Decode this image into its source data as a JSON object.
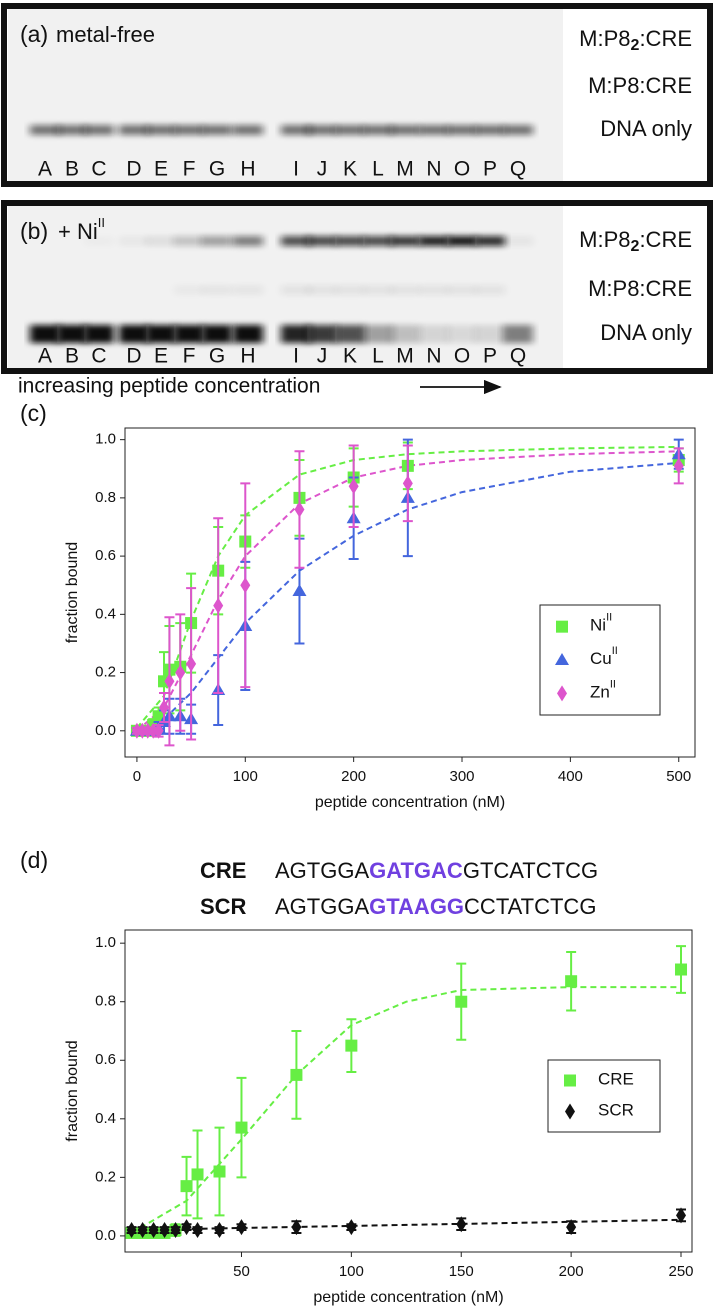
{
  "gels": [
    {
      "panel": "(a)",
      "condition": "metal-free",
      "condition_sup": null,
      "bands": [
        [
          "M:P8",
          "2",
          ":CRE"
        ],
        [
          "M:P8:CRE"
        ],
        [
          "DNA only"
        ]
      ],
      "lanes": [
        "A",
        "B",
        "C",
        "D",
        "E",
        "F",
        "G",
        "H",
        "I",
        "J",
        "K",
        "L",
        "M",
        "N",
        "O",
        "P",
        "Q"
      ]
    },
    {
      "panel": "(b)",
      "condition": "+ Ni",
      "condition_sup": "II",
      "bands": [
        [
          "M:P8",
          "2",
          ":CRE"
        ],
        [
          "M:P8:CRE"
        ],
        [
          "DNA only"
        ]
      ],
      "lanes": [
        "A",
        "B",
        "C",
        "D",
        "E",
        "F",
        "G",
        "H",
        "I",
        "J",
        "K",
        "L",
        "M",
        "N",
        "O",
        "P",
        "Q"
      ]
    }
  ],
  "gel_caption": "increasing peptide concentration",
  "chart_data": [
    {
      "type": "scatter",
      "panel": "(c)",
      "xlabel": "peptide concentration (nM)",
      "ylabel": "fraction bound",
      "xlim": [
        -11,
        515
      ],
      "xticks": [
        0,
        100,
        200,
        300,
        400,
        500
      ],
      "ylim": [
        -0.09,
        1.04
      ],
      "yticks": [
        {
          "value": 0,
          "label": "0.0"
        },
        {
          "value": 0.2,
          "label": "0.2"
        },
        {
          "value": 0.4,
          "label": "0.4"
        },
        {
          "value": 0.6,
          "label": "0.6"
        },
        {
          "value": 0.8,
          "label": "0.8"
        },
        {
          "value": 1,
          "label": "1.0"
        }
      ],
      "legend": "center right",
      "x": [
        0,
        5,
        10,
        15,
        20,
        25,
        30,
        40,
        50,
        75,
        100,
        150,
        200,
        250,
        500
      ],
      "series": [
        {
          "name": "Ni",
          "superscript": "II",
          "color": "#66ee44",
          "marker": "square",
          "values": [
            0,
            0,
            0,
            0.02,
            0.05,
            0.17,
            0.21,
            0.22,
            0.37,
            0.55,
            0.65,
            0.8,
            0.87,
            0.91,
            0.93
          ],
          "errors": [
            0.01,
            0.01,
            0.01,
            0.02,
            0.03,
            0.1,
            0.15,
            0.15,
            0.17,
            0.15,
            0.09,
            0.13,
            0.1,
            0.08,
            0.04
          ]
        },
        {
          "name": "Cu",
          "superscript": "II",
          "color": "#4466dd",
          "marker": "triangle",
          "values": [
            0,
            0,
            0,
            0,
            0.01,
            0.03,
            0.05,
            0.05,
            0.04,
            0.14,
            0.36,
            0.48,
            0.73,
            0.8,
            0.95
          ],
          "errors": [
            0.01,
            0.01,
            0.01,
            0.01,
            0.02,
            0.04,
            0.06,
            0.06,
            0.05,
            0.12,
            0.22,
            0.18,
            0.14,
            0.2,
            0.05
          ]
        },
        {
          "name": "Zn",
          "superscript": "II",
          "color": "#dd55cc",
          "marker": "diamond",
          "values": [
            0,
            0,
            0,
            0,
            0,
            0.08,
            0.17,
            0.2,
            0.23,
            0.43,
            0.5,
            0.76,
            0.84,
            0.85,
            0.91
          ],
          "errors": [
            0.01,
            0.01,
            0.01,
            0.01,
            0.02,
            0.05,
            0.22,
            0.2,
            0.26,
            0.3,
            0.35,
            0.2,
            0.14,
            0.13,
            0.06
          ]
        }
      ],
      "fits": [
        {
          "color": "#66ee44",
          "x": [
            0,
            25,
            50,
            75,
            100,
            150,
            200,
            250,
            300,
            400,
            500
          ],
          "values": [
            0.01,
            0.12,
            0.38,
            0.6,
            0.74,
            0.88,
            0.93,
            0.95,
            0.96,
            0.97,
            0.975
          ]
        },
        {
          "color": "#4466dd",
          "x": [
            0,
            25,
            50,
            75,
            100,
            150,
            200,
            250,
            300,
            400,
            500
          ],
          "values": [
            0,
            0.04,
            0.13,
            0.25,
            0.37,
            0.55,
            0.67,
            0.76,
            0.82,
            0.89,
            0.92
          ]
        },
        {
          "color": "#dd55cc",
          "x": [
            0,
            25,
            50,
            75,
            100,
            150,
            200,
            250,
            300,
            400,
            500
          ],
          "values": [
            0,
            0.08,
            0.26,
            0.45,
            0.6,
            0.78,
            0.87,
            0.91,
            0.93,
            0.95,
            0.96
          ]
        }
      ]
    },
    {
      "type": "scatter",
      "panel": "(d)",
      "xlabel": "peptide concentration (nM)",
      "ylabel": "fraction bound",
      "sequences": [
        {
          "name": "CRE",
          "parts": [
            "AGTGGA",
            "GATGAC",
            "GTCATCTCG"
          ]
        },
        {
          "name": "SCR",
          "parts": [
            "AGTGGA",
            "GTAAGG",
            "CCTATCTCG"
          ]
        }
      ],
      "highlight_color": "#7040e0",
      "xlim": [
        -3,
        255
      ],
      "xticks": [
        50,
        100,
        150,
        200,
        250
      ],
      "ylim": [
        -0.055,
        1.045
      ],
      "yticks": [
        {
          "value": 0,
          "label": "0.0"
        },
        {
          "value": 0.2,
          "label": "0.2"
        },
        {
          "value": 0.4,
          "label": "0.4"
        },
        {
          "value": 0.6,
          "label": "0.6"
        },
        {
          "value": 0.8,
          "label": "0.8"
        },
        {
          "value": 1,
          "label": "1.0"
        }
      ],
      "legend": "center right",
      "x": [
        0,
        5,
        10,
        15,
        20,
        25,
        30,
        40,
        50,
        75,
        100,
        150,
        200,
        250
      ],
      "series": [
        {
          "name": "CRE",
          "superscript": null,
          "color": "#66ee44",
          "marker": "square",
          "values": [
            0.01,
            0.01,
            0.01,
            0.01,
            0.02,
            0.17,
            0.21,
            0.22,
            0.37,
            0.55,
            0.65,
            0.8,
            0.87,
            0.91
          ],
          "errors": [
            0.01,
            0.01,
            0.01,
            0.01,
            0.02,
            0.1,
            0.15,
            0.15,
            0.17,
            0.15,
            0.09,
            0.13,
            0.1,
            0.08
          ]
        },
        {
          "name": "SCR",
          "superscript": null,
          "color": "#111111",
          "marker": "diamond",
          "values": [
            0.02,
            0.02,
            0.02,
            0.02,
            0.02,
            0.03,
            0.02,
            0.02,
            0.03,
            0.03,
            0.03,
            0.04,
            0.03,
            0.07
          ],
          "errors": [
            0.01,
            0.01,
            0.01,
            0.01,
            0.01,
            0.01,
            0.01,
            0.01,
            0.01,
            0.02,
            0.01,
            0.02,
            0.02,
            0.02
          ]
        }
      ],
      "fits": [
        {
          "color": "#66ee44",
          "x": [
            0,
            25,
            50,
            75,
            100,
            125,
            150,
            200,
            250
          ],
          "values": [
            0.01,
            0.12,
            0.33,
            0.55,
            0.72,
            0.8,
            0.84,
            0.85,
            0.85
          ]
        },
        {
          "color": "#111111",
          "x": [
            0,
            250
          ],
          "values": [
            0.02,
            0.055
          ]
        }
      ]
    }
  ]
}
